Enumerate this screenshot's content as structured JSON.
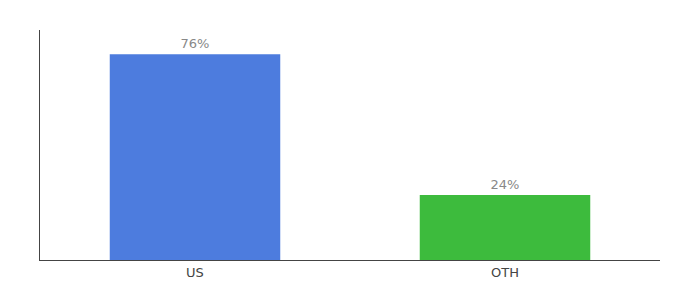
{
  "chart_data": {
    "type": "bar",
    "categories": [
      "US",
      "OTH"
    ],
    "values": [
      76,
      24
    ],
    "value_labels": [
      "76%",
      "24%"
    ],
    "data_labels": true,
    "colors": [
      "#4d7cde",
      "#3dbb3d"
    ],
    "ylim": [
      0,
      85
    ],
    "grid": false,
    "tick_labels": "x"
  }
}
